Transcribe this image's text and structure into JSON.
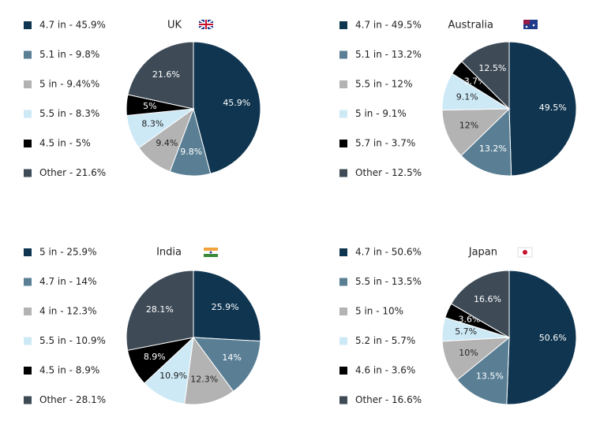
{
  "chart_data": [
    {
      "type": "pie",
      "title": "UK",
      "categories": [
        "4.7 in - 45.9%",
        "5.1 in - 9.8%",
        "5 in - 9.4%%",
        "5.5 in - 8.3%",
        "4.5 in - 5%",
        "Other - 21.6%"
      ],
      "values": [
        45.9,
        9.8,
        9.4,
        8.3,
        5,
        21.6
      ],
      "value_labels": [
        "45.9%",
        "9.8%",
        "9.4%",
        "8.3%",
        "5%",
        "21.6%"
      ],
      "colors": [
        "#0f3550",
        "#5a7f95",
        "#b3b3b3",
        "#cde9f6",
        "#000000",
        "#3e4b57"
      ]
    },
    {
      "type": "pie",
      "title": "Australia",
      "categories": [
        "4.7 in - 49.5%",
        "5.1 in - 13.2%",
        "5.5 in - 12%",
        "5 in - 9.1%",
        "5.7 in - 3.7%",
        "Other - 12.5%"
      ],
      "values": [
        49.5,
        13.2,
        12,
        9.1,
        3.7,
        12.5
      ],
      "value_labels": [
        "49.5%",
        "13.2%",
        "12%",
        "9.1%",
        "3.7%",
        "12.5%"
      ],
      "colors": [
        "#0f3550",
        "#5a7f95",
        "#b3b3b3",
        "#cde9f6",
        "#000000",
        "#3e4b57"
      ]
    },
    {
      "type": "pie",
      "title": "India",
      "categories": [
        "5 in - 25.9%",
        "4.7 in - 14%",
        "4 in - 12.3%",
        "5.5 in - 10.9%",
        "4.5 in - 8.9%",
        "Other - 28.1%"
      ],
      "values": [
        25.9,
        14,
        12.3,
        10.9,
        8.9,
        28.1
      ],
      "value_labels": [
        "25.9%",
        "14%",
        "12.3%",
        "10.9%",
        "8.9%",
        "28.1%"
      ],
      "colors": [
        "#0f3550",
        "#5a7f95",
        "#b3b3b3",
        "#cde9f6",
        "#000000",
        "#3e4b57"
      ]
    },
    {
      "type": "pie",
      "title": "Japan",
      "categories": [
        "4.7 in - 50.6%",
        "5.5 in - 13.5%",
        "5 in - 10%",
        "5.2 in - 5.7%",
        "4.6 in - 3.6%",
        "Other - 16.6%"
      ],
      "values": [
        50.6,
        13.5,
        10,
        5.7,
        3.6,
        16.6
      ],
      "value_labels": [
        "50.6%",
        "13.5%",
        "10%",
        "5.7%",
        "3.6%",
        "16.6%"
      ],
      "colors": [
        "#0f3550",
        "#5a7f95",
        "#b3b3b3",
        "#cde9f6",
        "#000000",
        "#3e4b57"
      ]
    }
  ]
}
